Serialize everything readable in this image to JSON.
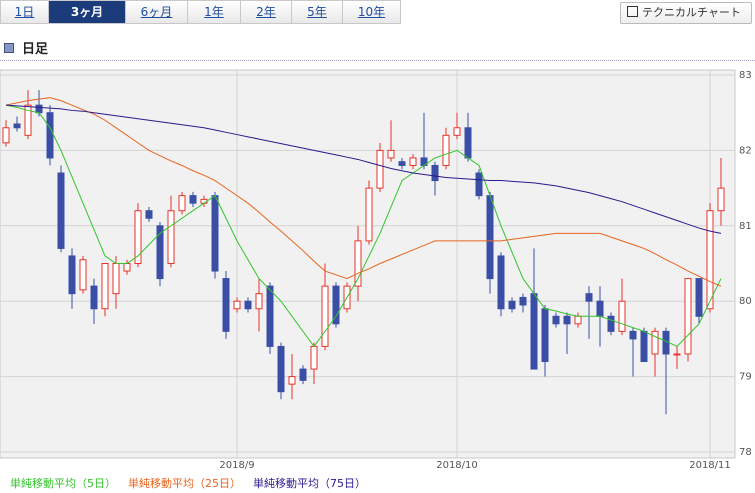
{
  "tabs": [
    "1日",
    "3ヶ月",
    "6ヶ月",
    "1年",
    "2年",
    "5年",
    "10年"
  ],
  "selected_tab": 1,
  "button": "テクニカルチャート",
  "section_title": "日足",
  "chart_data": {
    "type": "candlestick",
    "categories": [
      null,
      null,
      null,
      null,
      null,
      null,
      null,
      null,
      null,
      null,
      null,
      null,
      null,
      null,
      null,
      null,
      null,
      null,
      null,
      null,
      null,
      null,
      null,
      null,
      null,
      null,
      null,
      null,
      null,
      null,
      null,
      null,
      null,
      null,
      null,
      null,
      null,
      null,
      null,
      null,
      null,
      null,
      null,
      null,
      null,
      null,
      null,
      null,
      null,
      null,
      null,
      null,
      null,
      null,
      null,
      null,
      null,
      null,
      null,
      null,
      null,
      null,
      null,
      null,
      null,
      null
    ],
    "open": [
      82.1,
      82.35,
      82.2,
      82.6,
      82.5,
      81.7,
      80.6,
      80.15,
      80.2,
      79.9,
      80.1,
      80.4,
      80.5,
      81.2,
      81.0,
      80.5,
      81.2,
      81.4,
      81.3,
      81.4,
      80.3,
      79.9,
      80.0,
      79.9,
      80.2,
      79.4,
      78.9,
      79.1,
      79.1,
      79.4,
      80.2,
      79.9,
      80.2,
      80.8,
      81.5,
      81.9,
      81.85,
      81.8,
      81.9,
      81.8,
      81.8,
      82.2,
      82.3,
      81.7,
      81.4,
      80.6,
      80.0,
      80.05,
      80.1,
      79.9,
      79.8,
      79.8,
      79.7,
      80.1,
      80.0,
      79.8,
      79.6,
      79.6,
      79.6,
      79.3,
      79.6,
      79.3,
      79.3,
      80.3,
      79.9,
      81.2
    ],
    "high": [
      82.4,
      82.45,
      82.8,
      82.8,
      82.6,
      81.8,
      80.7,
      80.6,
      80.3,
      80.5,
      80.6,
      80.55,
      81.3,
      81.25,
      81.05,
      81.4,
      81.45,
      81.45,
      81.4,
      81.45,
      80.4,
      80.05,
      80.05,
      80.3,
      80.25,
      79.45,
      79.3,
      79.15,
      79.45,
      80.5,
      80.25,
      80.25,
      81.0,
      81.6,
      82.1,
      82.4,
      81.9,
      81.95,
      82.5,
      81.85,
      82.3,
      82.5,
      82.5,
      81.75,
      81.45,
      80.65,
      80.05,
      80.1,
      80.7,
      79.95,
      79.85,
      79.85,
      79.85,
      80.2,
      80.2,
      79.85,
      80.3,
      79.65,
      79.65,
      79.65,
      79.65,
      79.4,
      80.3,
      80.3,
      81.3,
      81.9
    ],
    "low": [
      82.05,
      82.25,
      82.15,
      82.45,
      81.8,
      80.65,
      79.9,
      80.1,
      79.7,
      79.8,
      79.9,
      80.35,
      80.45,
      81.05,
      80.2,
      80.45,
      81.15,
      81.25,
      81.25,
      80.3,
      79.5,
      79.85,
      79.85,
      79.6,
      79.3,
      78.7,
      78.7,
      78.9,
      78.9,
      79.35,
      79.65,
      79.85,
      80.0,
      80.75,
      81.45,
      81.85,
      81.75,
      81.75,
      81.75,
      81.4,
      81.75,
      82.15,
      81.85,
      81.35,
      80.1,
      79.8,
      79.85,
      79.85,
      79.1,
      79.0,
      79.65,
      79.3,
      79.65,
      79.5,
      79.4,
      79.55,
      79.55,
      79.0,
      79.2,
      79.0,
      78.5,
      79.1,
      79.2,
      79.7,
      79.85,
      81.0
    ],
    "close": [
      82.3,
      82.3,
      82.6,
      82.5,
      81.9,
      80.7,
      80.1,
      80.55,
      79.9,
      80.5,
      80.5,
      80.5,
      81.2,
      81.1,
      80.3,
      81.2,
      81.4,
      81.3,
      81.35,
      80.4,
      79.6,
      80.0,
      79.9,
      80.1,
      79.4,
      78.8,
      79.0,
      78.95,
      79.4,
      80.2,
      79.7,
      80.2,
      80.8,
      81.5,
      82.0,
      82.0,
      81.8,
      81.9,
      81.8,
      81.6,
      82.2,
      82.3,
      81.9,
      81.4,
      80.3,
      79.9,
      79.9,
      79.95,
      79.1,
      79.2,
      79.7,
      79.7,
      79.8,
      80.0,
      79.8,
      79.6,
      80.0,
      79.5,
      79.2,
      79.6,
      79.3,
      79.3,
      80.3,
      79.8,
      81.2,
      81.5
    ],
    "up_color": "#e8342b",
    "down_color": "#3a4ea6",
    "series": [
      {
        "name": "単純移動平均（5日）",
        "color": "#33c42b",
        "values": [
          82.6,
          82.57,
          82.53,
          82.5,
          82.3,
          82.0,
          81.65,
          81.3,
          80.95,
          80.6,
          80.5,
          80.5,
          80.6,
          80.75,
          80.9,
          81.0,
          81.1,
          81.2,
          81.3,
          81.4,
          81.1,
          80.8,
          80.55,
          80.3,
          80.15,
          80.0,
          79.8,
          79.6,
          79.4,
          79.6,
          79.8,
          80.05,
          80.3,
          80.6,
          80.9,
          81.25,
          81.6,
          81.7,
          81.8,
          81.9,
          81.95,
          82.0,
          81.9,
          81.8,
          81.4,
          81.0,
          80.65,
          80.3,
          80.1,
          79.9,
          79.87,
          79.83,
          79.8,
          79.8,
          79.8,
          79.75,
          79.7,
          79.65,
          79.6,
          79.53,
          79.47,
          79.4,
          79.55,
          79.7,
          80.0,
          80.3
        ]
      },
      {
        "name": "単純移動平均（25日）",
        "color": "#e8641e",
        "values": [
          82.6,
          82.63,
          82.66,
          82.68,
          82.7,
          82.66,
          82.6,
          82.54,
          82.48,
          82.4,
          82.3,
          82.2,
          82.1,
          82.0,
          81.93,
          81.86,
          81.8,
          81.73,
          81.67,
          81.6,
          81.5,
          81.4,
          81.3,
          81.18,
          81.05,
          80.93,
          80.8,
          80.67,
          80.53,
          80.4,
          80.35,
          80.3,
          80.37,
          80.43,
          80.5,
          80.56,
          80.62,
          80.68,
          80.74,
          80.8,
          80.8,
          80.8,
          80.8,
          80.8,
          80.8,
          80.8,
          80.82,
          80.84,
          80.86,
          80.88,
          80.9,
          80.9,
          80.9,
          80.9,
          80.9,
          80.85,
          80.8,
          80.75,
          80.7,
          80.63,
          80.55,
          80.48,
          80.4,
          80.33,
          80.26,
          80.2
        ]
      },
      {
        "name": "単純移動平均（75日）",
        "color": "#2a1a8c",
        "values": [
          82.6,
          82.59,
          82.58,
          82.57,
          82.56,
          82.55,
          82.53,
          82.52,
          82.5,
          82.48,
          82.46,
          82.44,
          82.42,
          82.4,
          82.38,
          82.36,
          82.34,
          82.32,
          82.3,
          82.27,
          82.24,
          82.21,
          82.18,
          82.15,
          82.12,
          82.09,
          82.06,
          82.03,
          82.0,
          81.97,
          81.94,
          81.91,
          81.88,
          81.84,
          81.8,
          81.76,
          81.73,
          81.7,
          81.68,
          81.66,
          81.64,
          81.63,
          81.62,
          81.61,
          81.6,
          81.6,
          81.59,
          81.58,
          81.57,
          81.55,
          81.53,
          81.5,
          81.47,
          81.44,
          81.4,
          81.36,
          81.32,
          81.27,
          81.22,
          81.17,
          81.12,
          81.07,
          81.02,
          80.97,
          80.93,
          80.9
        ]
      }
    ],
    "xticks": [
      {
        "value": 21,
        "label": "2018/9"
      },
      {
        "value": 41,
        "label": "2018/10"
      },
      {
        "value": 64,
        "label": "2018/11"
      }
    ],
    "ylim": [
      78,
      83
    ],
    "yticks": [
      78,
      79,
      80,
      81,
      82,
      83
    ],
    "grid": true
  }
}
